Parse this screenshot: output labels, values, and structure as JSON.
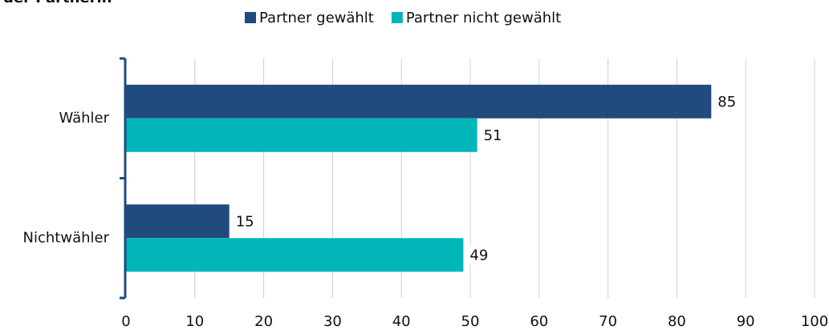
{
  "chart_data": {
    "type": "bar",
    "orientation": "horizontal",
    "title": "der Partnerin",
    "categories": [
      "Wähler",
      "Nichtwähler"
    ],
    "series": [
      {
        "name": "Partner gewählt",
        "color": "#214a7d",
        "values": [
          85,
          15
        ]
      },
      {
        "name": "Partner nicht gewählt",
        "color": "#00b6b9",
        "values": [
          51,
          49
        ]
      }
    ],
    "xlim": [
      0,
      100
    ],
    "xticks": [
      0,
      10,
      20,
      30,
      40,
      50,
      60,
      70,
      80,
      90,
      100
    ],
    "grid": true,
    "legend": "top"
  }
}
